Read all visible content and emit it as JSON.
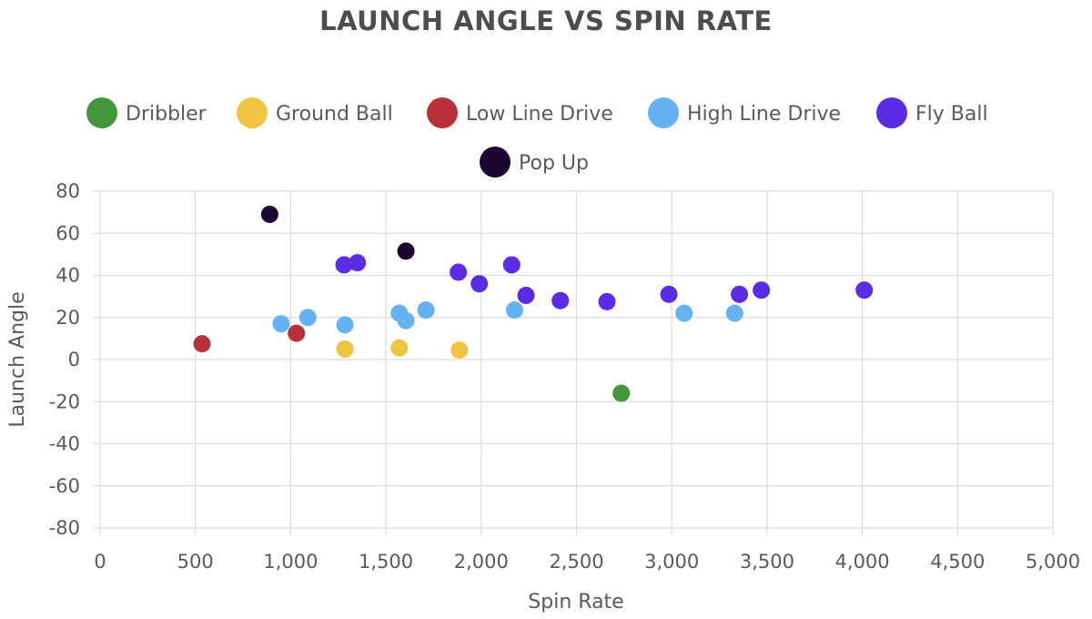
{
  "chart_data": {
    "type": "scatter",
    "title": "LAUNCH ANGLE VS SPIN RATE",
    "xlabel": "Spin Rate",
    "ylabel": "Launch Angle",
    "xlim": [
      0,
      5000
    ],
    "ylim": [
      -80,
      80
    ],
    "x_ticks": [
      0,
      500,
      1000,
      1500,
      2000,
      2500,
      3000,
      3500,
      4000,
      4500,
      5000
    ],
    "x_tick_labels": [
      "0",
      "500",
      "1,000",
      "1,500",
      "2,000",
      "2,500",
      "3,000",
      "3,500",
      "4,000",
      "4,500",
      "5,000"
    ],
    "y_ticks": [
      80,
      60,
      40,
      20,
      0,
      -20,
      -40,
      -60,
      -80
    ],
    "y_tick_labels": [
      "80",
      "60",
      "40",
      "20",
      "0",
      "-20",
      "-40",
      "-60",
      "-80"
    ],
    "grid": true,
    "legend_position": "top",
    "series": [
      {
        "name": "Dribbler",
        "color": "#43963a",
        "points": [
          [
            2735,
            -16
          ]
        ]
      },
      {
        "name": "Ground Ball",
        "color": "#f0c443",
        "points": [
          [
            1285,
            5
          ],
          [
            1570,
            5.5
          ],
          [
            1885,
            4.5
          ]
        ]
      },
      {
        "name": "Low Line Drive",
        "color": "#b8303a",
        "points": [
          [
            535,
            7.5
          ],
          [
            1030,
            12.5
          ]
        ]
      },
      {
        "name": "High Line Drive",
        "color": "#64b2f2",
        "points": [
          [
            950,
            17
          ],
          [
            1090,
            20
          ],
          [
            1285,
            16.5
          ],
          [
            1570,
            22
          ],
          [
            1605,
            18.5
          ],
          [
            1710,
            23.5
          ],
          [
            2175,
            23.5
          ],
          [
            3065,
            22
          ],
          [
            3330,
            22
          ]
        ]
      },
      {
        "name": "Fly Ball",
        "color": "#5b2be6",
        "points": [
          [
            1280,
            45
          ],
          [
            1350,
            46
          ],
          [
            1880,
            41.5
          ],
          [
            1990,
            36
          ],
          [
            2160,
            45
          ],
          [
            2235,
            30.5
          ],
          [
            2415,
            28
          ],
          [
            2660,
            27.5
          ],
          [
            2985,
            31
          ],
          [
            3355,
            31
          ],
          [
            3470,
            33
          ],
          [
            4010,
            33
          ]
        ]
      },
      {
        "name": "Pop Up",
        "color": "#1c0530",
        "points": [
          [
            890,
            69
          ],
          [
            1605,
            51.5
          ]
        ]
      }
    ]
  }
}
